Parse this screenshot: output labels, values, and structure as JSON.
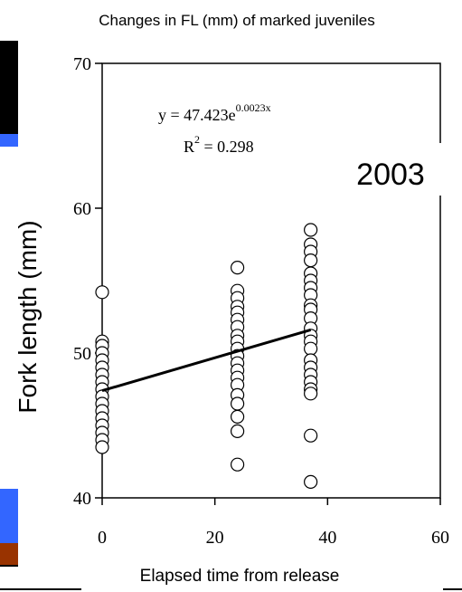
{
  "chart_data": {
    "type": "scatter",
    "title": "Changes in FL (mm) of marked juveniles",
    "x_label": "Elapsed time from release",
    "y_label": "Fork length (mm)",
    "equation": {
      "base": "y = 47.423e",
      "exponent": "0.0023x"
    },
    "r_squared": {
      "base": "R",
      "exponent": "2",
      "rest": " = 0.298"
    },
    "annotation": "2003",
    "xlim": [
      0,
      60
    ],
    "xticks": [
      0,
      20,
      40,
      60
    ],
    "ylim": [
      40,
      70
    ],
    "yticks": [
      40,
      50,
      60,
      70
    ],
    "series": [
      {
        "color": "#ffffff",
        "x": [
          0,
          0,
          0,
          0,
          0,
          0,
          0,
          0,
          0,
          0,
          0,
          0,
          0,
          0,
          0,
          0,
          0,
          24,
          24,
          24,
          24,
          24,
          24,
          24,
          24,
          24,
          24,
          24,
          24,
          24,
          24,
          24,
          24,
          24,
          24,
          24,
          24,
          37,
          37,
          37,
          37,
          37,
          37,
          37,
          37,
          37,
          37,
          37,
          37,
          37,
          37,
          37,
          37,
          37,
          37,
          37,
          37,
          37,
          37,
          37
        ],
        "values": [
          54.2,
          50.8,
          50.5,
          50,
          49.5,
          49,
          48.5,
          48,
          47.5,
          47,
          46.5,
          46,
          45.5,
          45,
          44.5,
          44,
          43.5,
          55.9,
          54.3,
          53.8,
          53.2,
          52.8,
          52.3,
          51.8,
          51.2,
          50.8,
          50.3,
          49.8,
          49.3,
          48.8,
          48.3,
          47.8,
          47.1,
          46.5,
          45.6,
          44.6,
          42.3,
          58.5,
          57.5,
          57,
          56.4,
          55.5,
          55,
          54.5,
          54,
          53.3,
          53,
          52.4,
          51.7,
          51.2,
          50.8,
          50.3,
          49.5,
          49,
          48.5,
          48,
          47.5,
          47.2,
          44.3,
          41.1
        ]
      }
    ],
    "trendline": {
      "color": "#000000",
      "x": [
        0,
        37
      ],
      "values": [
        47.4,
        51.6
      ]
    }
  }
}
